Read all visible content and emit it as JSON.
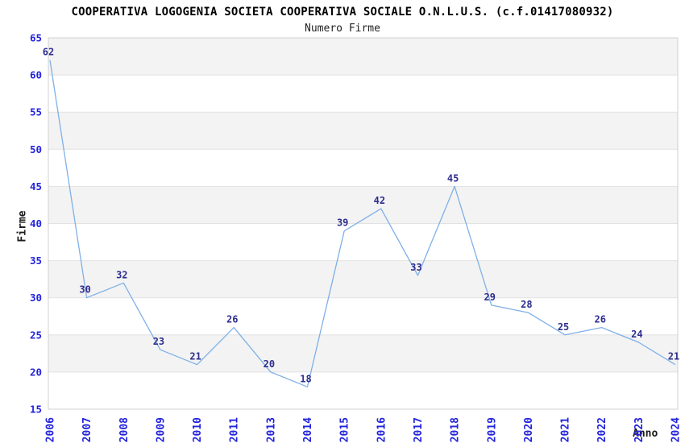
{
  "chart_data": {
    "type": "line",
    "title": "COOPERATIVA LOGOGENIA SOCIETA COOPERATIVA SOCIALE O.N.L.U.S. (c.f.01417080932)",
    "subtitle": "Numero Firme",
    "xlabel": "Anno",
    "ylabel": "Firme",
    "categories": [
      "2006",
      "2007",
      "2008",
      "2009",
      "2010",
      "2011",
      "2013",
      "2014",
      "2015",
      "2016",
      "2017",
      "2018",
      "2019",
      "2020",
      "2021",
      "2022",
      "2023",
      "2024"
    ],
    "series": [
      {
        "name": "Numero Firme",
        "values": [
          62,
          30,
          32,
          23,
          21,
          26,
          20,
          18,
          39,
          42,
          33,
          45,
          29,
          28,
          25,
          26,
          24,
          21
        ]
      }
    ],
    "ylim": [
      15,
      65
    ],
    "ytick_step": 5,
    "yticks": [
      15,
      20,
      25,
      30,
      35,
      40,
      45,
      50,
      55,
      60,
      65
    ],
    "grid": "horizontal",
    "band_fill": "alternating",
    "legend": "none",
    "point_labels": true,
    "colors": {
      "line": "#7fb0e8",
      "tick_label": "#2323dd",
      "point_label": "#2e2e8f",
      "band": "#f3f3f3",
      "gridline": "#e2e2e2",
      "plot_border": "#d0d0d0",
      "title": "#000000",
      "axis_title": "#1a1a1a",
      "background": "#ffffff"
    }
  }
}
